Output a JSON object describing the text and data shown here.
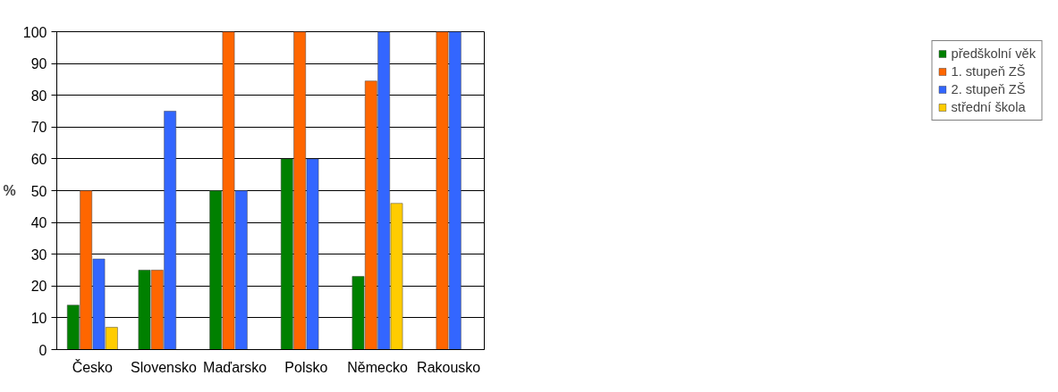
{
  "chart_data": {
    "type": "bar",
    "ylabel": "%",
    "categories": [
      "Česko",
      "Slovensko",
      "Maďarsko",
      "Polsko",
      "Německo",
      "Rakousko"
    ],
    "series": [
      {
        "name": "předškolní věk",
        "color": "#008000",
        "values": [
          14,
          25,
          50,
          60,
          23,
          null
        ]
      },
      {
        "name": "1. stupeň ZŠ",
        "color": "#ff6600",
        "values": [
          50,
          25,
          100,
          100,
          84.5,
          100
        ]
      },
      {
        "name": "2. stupeň ZŠ",
        "color": "#3366ff",
        "values": [
          28.5,
          75,
          50,
          60,
          100,
          100
        ]
      },
      {
        "name": "střední škola",
        "color": "#ffcc00",
        "values": [
          7,
          null,
          null,
          null,
          46,
          null
        ]
      }
    ],
    "ylim": [
      0,
      100
    ],
    "yticks": [
      0,
      10,
      20,
      30,
      40,
      50,
      60,
      70,
      80,
      90,
      100
    ],
    "grid": "y",
    "legend": "right"
  }
}
